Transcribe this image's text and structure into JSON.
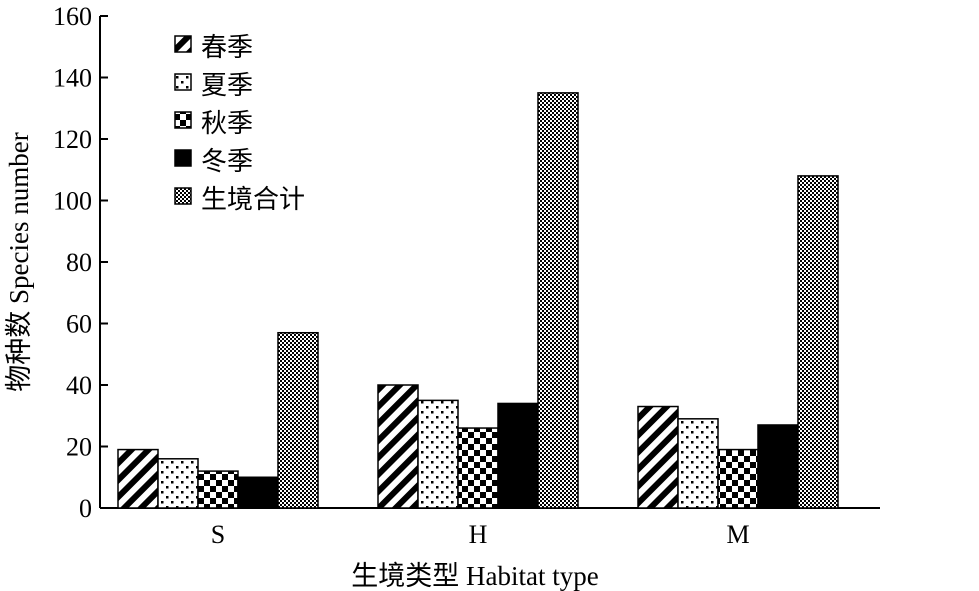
{
  "chart_data": {
    "type": "bar",
    "categories": [
      "S",
      "H",
      "M"
    ],
    "series": [
      {
        "name": "春季",
        "values": [
          19,
          40,
          33
        ],
        "pattern": "diagonal-stripes"
      },
      {
        "name": "夏季",
        "values": [
          16,
          35,
          29
        ],
        "pattern": "sparse-dots"
      },
      {
        "name": "秋季",
        "values": [
          12,
          26,
          19
        ],
        "pattern": "checker-squares"
      },
      {
        "name": "冬季",
        "values": [
          10,
          34,
          27
        ],
        "pattern": "solid"
      },
      {
        "name": "生境合计",
        "values": [
          57,
          135,
          108
        ],
        "pattern": "fine-checker"
      }
    ],
    "title": "",
    "xlabel": "生境类型 Habitat type",
    "ylabel": "物种数 Species number",
    "ylim": [
      0,
      160
    ],
    "yticks": [
      0,
      20,
      40,
      60,
      80,
      100,
      120,
      140,
      160
    ],
    "grid": false,
    "legend_position": "top-left",
    "colors": {
      "ink": "#000000",
      "background": "#ffffff"
    }
  }
}
